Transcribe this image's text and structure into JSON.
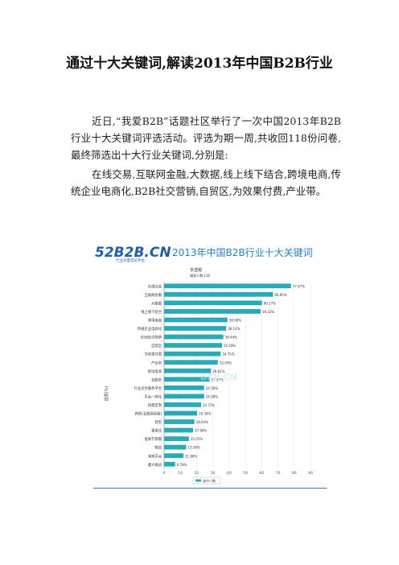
{
  "document": {
    "title": "通过十大关键词,解读2013年中国B2B行业",
    "paragraphs": [
      "近日,“我爱B2B”话题社区举行了一次中国2013年B2B行业十大关键词评选活动。评选为期一周,共收回118份问卷,最终筛选出十大行业关键词,分别是:",
      "在线交易,互联网金融,大数据,线上线下结合,跨境电商,传统企业电商化,B2B社交营销,自贸区,为效果付费,产业带。"
    ]
  },
  "chart_data": {
    "type": "bar",
    "orientation": "horizontal",
    "logo_text": "52B2B.CN",
    "logo_subtext": "行业深度资讯平台",
    "title": "2013年中国B2B行业十大关键词",
    "subtitle": "多选题",
    "respondents_label": "填答人数:118",
    "ylabel": "选项(%)",
    "watermark": "B2B.CN",
    "legend": "选中人数",
    "xlim": [
      0,
      90
    ],
    "xticks": [
      0,
      10,
      20,
      30,
      40,
      50,
      60,
      70,
      80,
      90
    ],
    "color": "#2aaab8",
    "categories": [
      "在线交易",
      "互联网金融",
      "大数据",
      "线上线下结合",
      "跨境电商",
      "传统企业电商化",
      "B2B社交营销",
      "自贸区",
      "为效果付费",
      "产业带",
      "移动电商",
      "云服务",
      "行业综合服务平台",
      "平台一体化",
      "按需定制",
      "跨界(互联网金融)",
      "转型",
      "垂直化",
      "电商节周期",
      "物流",
      "其他平台",
      "最大挑战"
    ],
    "values": [
      77.97,
      66.95,
      60.17,
      59.32,
      38.98,
      38.14,
      36.44,
      35.59,
      34.75,
      33.05,
      28.81,
      27.97,
      24.58,
      24.58,
      22.72,
      20.34,
      18.64,
      17.8,
      15.25,
      13.56,
      11.86,
      6.78
    ],
    "value_labels": [
      "77.97%",
      "66.95%",
      "60.17%",
      "59.32%",
      "38.98%",
      "38.14%",
      "36.44%",
      "35.59%",
      "34.75%",
      "33.05%",
      "28.81%",
      "27.97%",
      "24.58%",
      "24.58%",
      "22.72%",
      "20.34%",
      "18.64%",
      "17.80%",
      "15.25%",
      "13.56%",
      "11.86%",
      "6.78%"
    ]
  }
}
